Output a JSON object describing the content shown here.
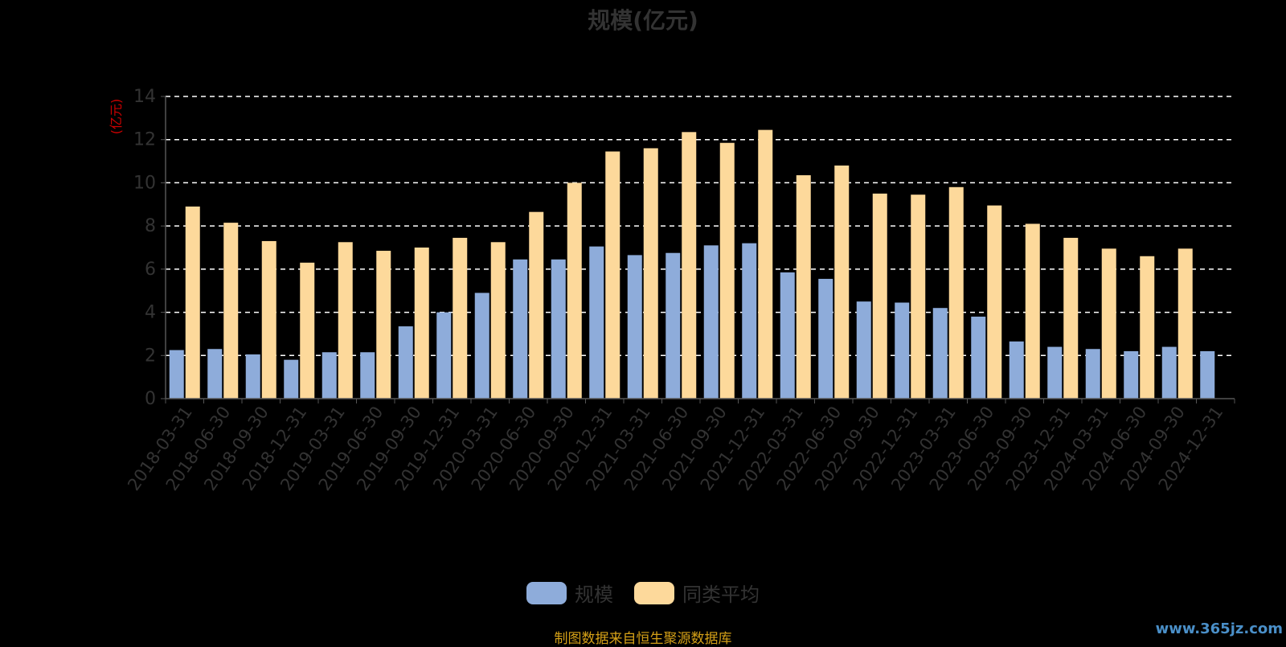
{
  "title": "规模(亿元)",
  "source_note": "制图数据来自恒生聚源数据库",
  "watermark": "www.365jz.com",
  "colors": {
    "scale": "#8EACDA",
    "peer_avg": "#FDD99B",
    "background": "#000000",
    "grid": "#FFFFFF",
    "axis": "#555555",
    "unit_label": "#CC0000",
    "source_note": "#D4A017"
  },
  "legend": [
    {
      "name": "规模",
      "color": "#8EACDA"
    },
    {
      "name": "同类平均",
      "color": "#FDD99B"
    }
  ],
  "chart_data": {
    "type": "bar",
    "title": "规模(亿元)",
    "ylabel": "(亿元)",
    "xlabel": "",
    "ylim": [
      0,
      14
    ],
    "yticks": [
      0,
      2,
      4,
      6,
      8,
      10,
      12,
      14
    ],
    "grid": true,
    "legend_position": "bottom",
    "categories": [
      "2018-03-31",
      "2018-06-30",
      "2018-09-30",
      "2018-12-31",
      "2019-03-31",
      "2019-06-30",
      "2019-09-30",
      "2019-12-31",
      "2020-03-31",
      "2020-06-30",
      "2020-09-30",
      "2020-12-31",
      "2021-03-31",
      "2021-06-30",
      "2021-09-30",
      "2021-12-31",
      "2022-03-31",
      "2022-06-30",
      "2022-09-30",
      "2022-12-31",
      "2023-03-31",
      "2023-06-30",
      "2023-09-30",
      "2023-12-31",
      "2024-03-31",
      "2024-06-30",
      "2024-09-30",
      "2024-12-31"
    ],
    "series": [
      {
        "name": "规模",
        "values": [
          2.25,
          2.3,
          2.05,
          1.8,
          2.15,
          2.15,
          3.35,
          4.0,
          4.9,
          6.45,
          6.45,
          7.05,
          6.65,
          6.75,
          7.1,
          7.2,
          5.85,
          5.55,
          4.5,
          4.45,
          4.2,
          3.8,
          2.65,
          2.4,
          2.3,
          2.2,
          2.4,
          2.2
        ]
      },
      {
        "name": "同类平均",
        "values": [
          8.9,
          8.15,
          7.3,
          6.3,
          7.25,
          6.85,
          7.0,
          7.45,
          7.25,
          8.65,
          10.0,
          11.45,
          11.6,
          12.35,
          11.85,
          12.45,
          10.35,
          10.8,
          9.5,
          9.45,
          9.8,
          8.95,
          8.1,
          7.45,
          6.95,
          6.6,
          6.95,
          null
        ]
      }
    ]
  }
}
